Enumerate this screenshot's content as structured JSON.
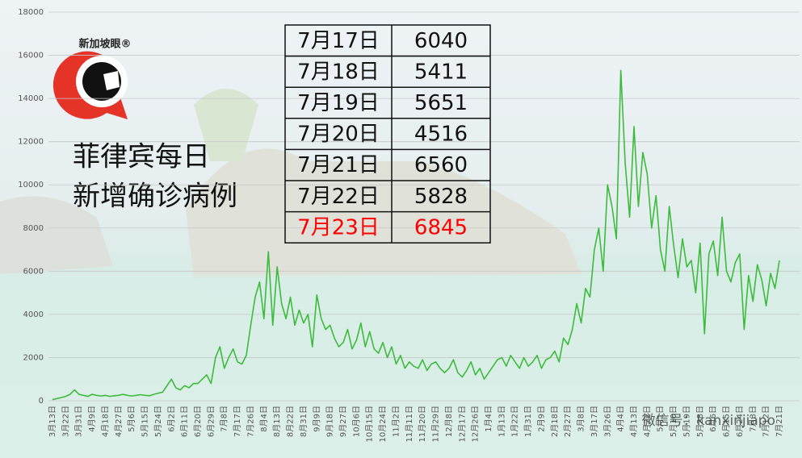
{
  "chart_data": {
    "type": "line",
    "title": [
      "菲律宾每日",
      "新增确诊病例"
    ],
    "logo": "新加坡眼®",
    "watermark": "微信号：kanxinjiapo",
    "categories": [
      "3月13日",
      null,
      null,
      "3月22日",
      null,
      null,
      "3月31日",
      null,
      null,
      "4月9日",
      null,
      null,
      "4月18日",
      null,
      null,
      "4月27日",
      null,
      null,
      "5月6日",
      null,
      null,
      "5月15日",
      null,
      null,
      "5月24日",
      null,
      null,
      "6月2日",
      null,
      null,
      "6月11日",
      null,
      null,
      "6月20日",
      null,
      null,
      "6月29日",
      null,
      null,
      "7月8日",
      null,
      null,
      "7月17日",
      null,
      null,
      "7月26日",
      null,
      null,
      "8月4日",
      null,
      null,
      "8月13日",
      null,
      null,
      "8月22日",
      null,
      null,
      "8月31日",
      null,
      null,
      "9月9日",
      null,
      null,
      "9月18日",
      null,
      null,
      "9月27日",
      null,
      null,
      "10月6日",
      null,
      null,
      "10月15日",
      null,
      null,
      "10月24日",
      null,
      null,
      "11月2日",
      null,
      null,
      "11月11日",
      null,
      null,
      "11月20日",
      null,
      null,
      "11月29日",
      null,
      null,
      "12月8日",
      null,
      null,
      "12月17日",
      null,
      null,
      "12月26日",
      null,
      null,
      "1月4日",
      null,
      null,
      "1月13日",
      null,
      null,
      "1月22日",
      null,
      null,
      "1月31日",
      null,
      null,
      "2月9日",
      null,
      null,
      "2月18日",
      null,
      null,
      "2月27日",
      null,
      null,
      "3月8日",
      null,
      null,
      "3月17日",
      null,
      null,
      "3月26日",
      null,
      null,
      "4月4日",
      null,
      null,
      "4月13日",
      null,
      null,
      "4月22日",
      null,
      null,
      "5月1日",
      null,
      null,
      "5月10日",
      null,
      null,
      "5月19日",
      null,
      null,
      "5月28日",
      null,
      null,
      "6月6日",
      null,
      null,
      "6月15日",
      null,
      null,
      "6月24日",
      null,
      null,
      "7月3日",
      null,
      null,
      "7月12日",
      null,
      null,
      "7月21日"
    ],
    "series": [
      {
        "color": "#3dbb3d",
        "values": [
          50,
          100,
          150,
          200,
          300,
          500,
          300,
          250,
          200,
          300,
          250,
          220,
          250,
          200,
          230,
          250,
          300,
          250,
          220,
          250,
          280,
          250,
          230,
          300,
          350,
          400,
          700,
          1000,
          600,
          500,
          700,
          600,
          800,
          800,
          1000,
          1200,
          800,
          2000,
          2500,
          1500,
          2000,
          2400,
          1800,
          1700,
          2100,
          3500,
          4800,
          5500,
          3800,
          6900,
          3500,
          6200,
          4500,
          3800,
          4800,
          3500,
          4200,
          3600,
          4000,
          2500,
          4900,
          3800,
          3300,
          3500,
          2900,
          2500,
          2700,
          3300,
          2400,
          2800,
          3600,
          2500,
          3200,
          2400,
          2200,
          2700,
          2000,
          2500,
          1700,
          2100,
          1500,
          1800,
          1600,
          1500,
          1900,
          1400,
          1700,
          1800,
          1500,
          1300,
          1500,
          1900,
          1300,
          1100,
          1400,
          1800,
          1200,
          1500,
          1000,
          1300,
          1600,
          1900,
          2000,
          1600,
          2100,
          1800,
          1500,
          2000,
          1600,
          1800,
          2100,
          1500,
          1900,
          2000,
          2300,
          1800,
          2900,
          2600,
          3300,
          4500,
          3600,
          5200,
          4800,
          7000,
          8000,
          6000,
          10000,
          9000,
          7500,
          15300,
          11000,
          8500,
          12700,
          9000,
          11500,
          10500,
          8000,
          9500,
          7000,
          6000,
          9000,
          7200,
          5700,
          7500,
          6200,
          6500,
          5000,
          7300,
          3100,
          6800,
          7400,
          5800,
          8500,
          6000,
          5500,
          6400,
          6800,
          3300,
          5800,
          4600,
          6300,
          5600,
          4400,
          5900,
          5200,
          6500
        ]
      }
    ],
    "ylim": [
      0,
      18000
    ],
    "yticks": [
      0,
      2000,
      4000,
      6000,
      8000,
      10000,
      12000,
      14000,
      16000,
      18000
    ],
    "grid": true,
    "table": {
      "highlight_color": "#ff0000",
      "rows": [
        [
          "7月17日",
          6040
        ],
        [
          "7月18日",
          5411
        ],
        [
          "7月19日",
          5651
        ],
        [
          "7月20日",
          4516
        ],
        [
          "7月21日",
          6560
        ],
        [
          "7月22日",
          5828
        ],
        [
          "7月23日",
          6845
        ]
      ]
    }
  }
}
